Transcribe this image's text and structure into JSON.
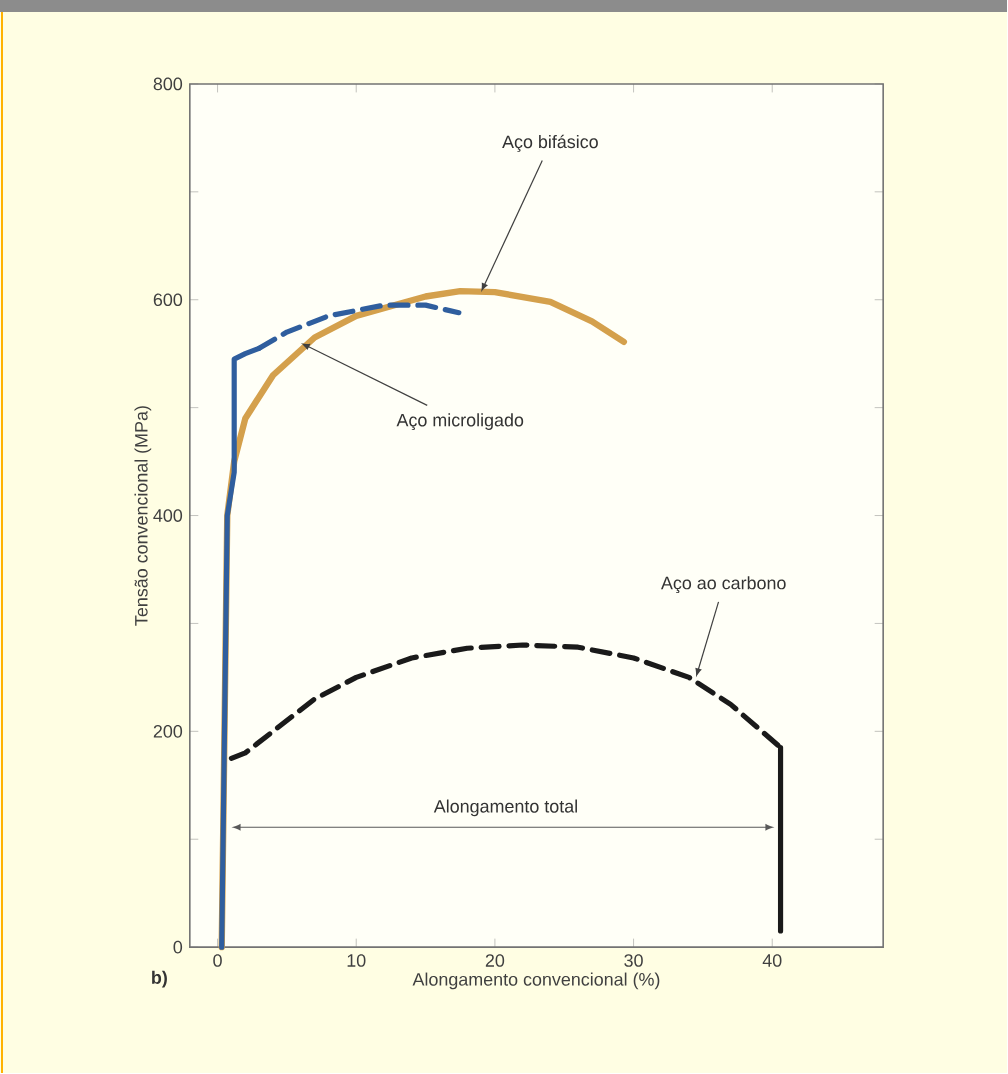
{
  "chart_data": {
    "type": "line",
    "xlabel": "Alongamento convencional (%)",
    "ylabel": "Tensão convencional (MPa)",
    "xlim": [
      -2,
      48
    ],
    "ylim": [
      0,
      800
    ],
    "xticks": [
      0,
      10,
      20,
      30,
      40
    ],
    "yticks": [
      0,
      {
        "value": 100,
        "label": null
      },
      200,
      {
        "value": 300,
        "label": null
      },
      400,
      {
        "value": 500,
        "label": null
      },
      600,
      {
        "value": 700,
        "label": null
      },
      800
    ],
    "grid": false,
    "marker": "none",
    "series": [
      {
        "color": "#d4a04c",
        "line_style": "solid",
        "x": [
          0.3,
          0.7,
          1.2,
          2,
          4,
          7,
          10,
          15,
          17.5,
          20,
          24,
          27,
          29.3
        ],
        "values": [
          0,
          400,
          450,
          490,
          530,
          565,
          585,
          603,
          608,
          607,
          598,
          580,
          561
        ]
      },
      {
        "color": "#2f5e9e",
        "line_style": "solid",
        "x": [
          0.3,
          0.7,
          1.2,
          1.2,
          2,
          3
        ],
        "values": [
          0,
          400,
          440,
          545,
          550,
          555
        ]
      },
      {
        "color": "#2f5e9e",
        "line_style": "dashed",
        "x": [
          3,
          5,
          8,
          12,
          15,
          17.4
        ],
        "values": [
          555,
          570,
          585,
          595,
          595,
          588
        ]
      },
      {
        "color": "#1a1a1a",
        "line_style": "dashed",
        "x": [
          1,
          2,
          4,
          7,
          10,
          14,
          18,
          22,
          26,
          30,
          34,
          37,
          40.6
        ],
        "values": [
          175,
          180,
          200,
          230,
          250,
          268,
          277,
          280,
          278,
          268,
          250,
          225,
          185
        ]
      },
      {
        "color": "#1a1a1a",
        "line_style": "solid",
        "x": [
          40.6,
          40.6
        ],
        "values": [
          185,
          15
        ]
      }
    ],
    "annotations": [
      {
        "text": "Aço bifásico",
        "x": 19,
        "y": 607
      },
      {
        "text": "Aço microligado",
        "x": 6,
        "y": 560
      },
      {
        "text": "Aço ao carbono",
        "x": 34.5,
        "y": 250
      },
      "Alongamento total",
      "b)"
    ]
  }
}
